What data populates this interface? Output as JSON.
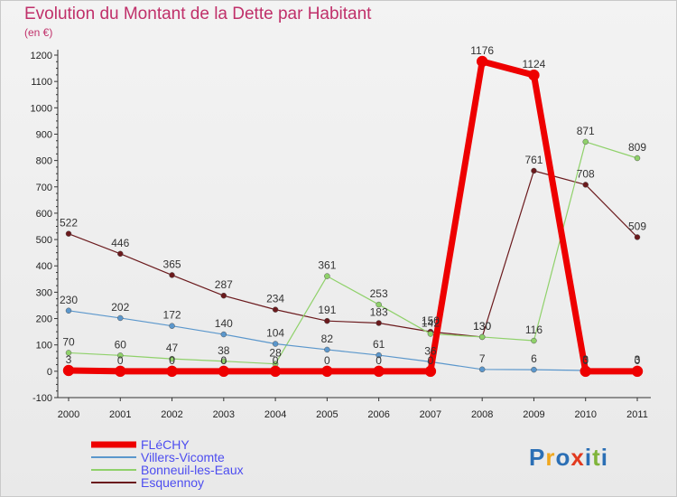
{
  "title": "Evolution du Montant de la Dette par Habitant",
  "subtitle": "(en €)",
  "logo": {
    "text": "Proxiti",
    "colors": [
      "#2b6fb5",
      "#f0a71e",
      "#2b6fb5",
      "#e23a1f",
      "#2b6fb5",
      "#7fb43a",
      "#2b6fb5"
    ]
  },
  "chart_data": {
    "type": "line",
    "x": [
      "2000",
      "2001",
      "2002",
      "2003",
      "2004",
      "2005",
      "2006",
      "2007",
      "2008",
      "2009",
      "2010",
      "2011"
    ],
    "ylim": [
      -100,
      1200
    ],
    "yticks": [
      -100,
      0,
      100,
      200,
      300,
      400,
      500,
      600,
      700,
      800,
      900,
      1000,
      1100,
      1200
    ],
    "grid": false,
    "legend": "bottom-left",
    "series": [
      {
        "name": "Esquennoy",
        "color": "#6b1a1d",
        "values": [
          522,
          446,
          365,
          287,
          234,
          191,
          183,
          150,
          130,
          761,
          708,
          509
        ],
        "labels": [
          "522",
          "446",
          "365",
          "287",
          "234",
          "191",
          "183",
          "150",
          "130",
          "761",
          "708",
          "509"
        ]
      },
      {
        "name": "Bonneuil-les-Eaux",
        "color": "#8fd16a",
        "values": [
          70,
          60,
          47,
          38,
          28,
          361,
          253,
          142,
          130,
          116,
          871,
          809
        ],
        "labels": [
          "70",
          "60",
          "47",
          "38",
          "28",
          "361",
          "253",
          "142",
          "130",
          "116",
          "871",
          "809"
        ]
      },
      {
        "name": "Villers-Vicomte",
        "color": "#5b97cc",
        "values": [
          230,
          202,
          172,
          140,
          104,
          82,
          61,
          36,
          7,
          6,
          3,
          3
        ],
        "labels": [
          "230",
          "202",
          "172",
          "140",
          "104",
          "82",
          "61",
          "36",
          "7",
          "6",
          "3",
          "3"
        ]
      },
      {
        "name": "FLéCHY",
        "color": "#ee0000",
        "values": [
          3,
          0,
          0,
          0,
          0,
          0,
          0,
          0,
          1176,
          1124,
          0,
          0
        ],
        "labels": [
          "3",
          "0",
          "0",
          "0",
          "0",
          "0",
          "0",
          "0",
          "1176",
          "1124",
          "0",
          "0"
        ]
      }
    ],
    "legend_order": [
      "FLéCHY",
      "Villers-Vicomte",
      "Bonneuil-les-Eaux",
      "Esquennoy"
    ]
  }
}
